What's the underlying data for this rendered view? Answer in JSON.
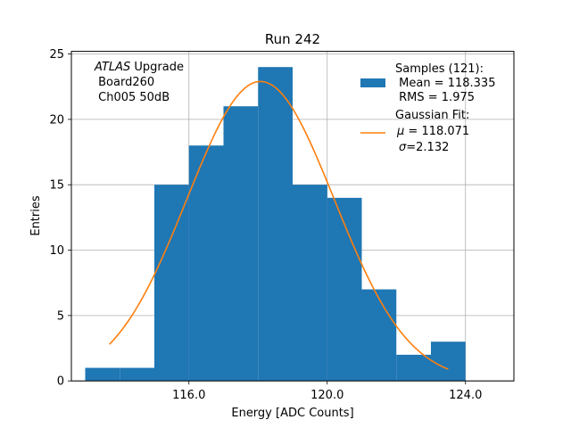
{
  "chart_data": {
    "type": "bar",
    "title": "Run 242",
    "xlabel": "Energy [ADC Counts]",
    "ylabel": "Entries",
    "xlim": [
      112.6,
      125.4
    ],
    "ylim": [
      0,
      25.2
    ],
    "grid": true,
    "xticks": [
      116.0,
      120.0,
      124.0
    ],
    "xtick_labels": [
      "116.0",
      "120.0",
      "124.0"
    ],
    "yticks": [
      0,
      5,
      10,
      15,
      20,
      25
    ],
    "ytick_labels": [
      "0",
      "5",
      "10",
      "15",
      "20",
      "25"
    ],
    "bin_edges": [
      113,
      114,
      115,
      116,
      117,
      118,
      119,
      120,
      121,
      122,
      123,
      124
    ],
    "counts": [
      1,
      1,
      15,
      18,
      21,
      24,
      15,
      14,
      7,
      2,
      3
    ],
    "bar_color": "#1f77b4",
    "fit_color": "#ff7f0e",
    "fit": {
      "mu": 118.071,
      "sigma": 2.132,
      "amplitude": 22.9,
      "x_range": [
        113.7,
        123.5
      ]
    },
    "annotation": {
      "italic": "ATLAS",
      "rest": " Upgrade",
      "line2": " Board260",
      "line3": " Ch005 50dB"
    },
    "legend": {
      "position": "top-right",
      "samples": {
        "line1": "Samples (121):",
        "line2": " Mean = 118.335",
        "line3": " RMS = 1.975"
      },
      "fit": {
        "line1": "Gaussian Fit:",
        "mu_symbol": "μ",
        "mu_text": " = 118.071",
        "sigma_symbol": "σ",
        "sigma_text": "=2.132"
      }
    }
  }
}
